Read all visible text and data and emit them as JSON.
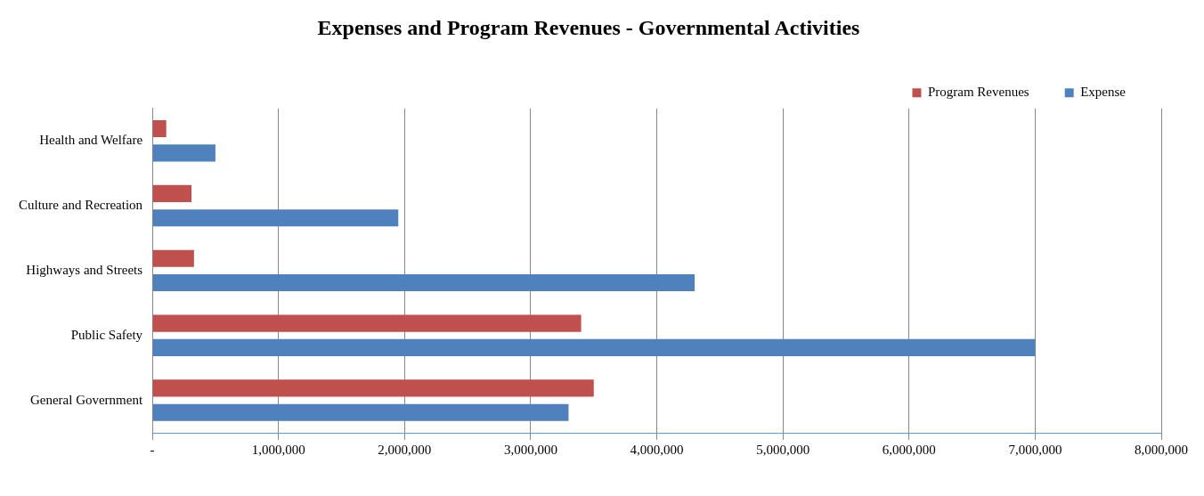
{
  "chart_data": {
    "type": "bar",
    "orientation": "horizontal",
    "title": "Expenses and Program Revenues - Governmental Activities",
    "categories": [
      "Health and Welfare",
      "Culture and Recreation",
      "Highways and Streets",
      "Public Safety",
      "General Government"
    ],
    "series": [
      {
        "name": "Program Revenues",
        "color": "#c0504d",
        "values": [
          110000,
          310000,
          330000,
          3400000,
          3500000
        ]
      },
      {
        "name": "Expense",
        "color": "#4f81bd",
        "values": [
          500000,
          1950000,
          4300000,
          7000000,
          3300000
        ]
      }
    ],
    "xlim": [
      0,
      8000000
    ],
    "xticks": [
      {
        "value": 0,
        "label": "-"
      },
      {
        "value": 1000000,
        "label": "1,000,000"
      },
      {
        "value": 2000000,
        "label": "2,000,000"
      },
      {
        "value": 3000000,
        "label": "3,000,000"
      },
      {
        "value": 4000000,
        "label": "4,000,000"
      },
      {
        "value": 5000000,
        "label": "5,000,000"
      },
      {
        "value": 6000000,
        "label": "6,000,000"
      },
      {
        "value": 7000000,
        "label": "7,000,000"
      },
      {
        "value": 8000000,
        "label": "8,000,000"
      }
    ],
    "grid": "x",
    "legend": "top right"
  }
}
